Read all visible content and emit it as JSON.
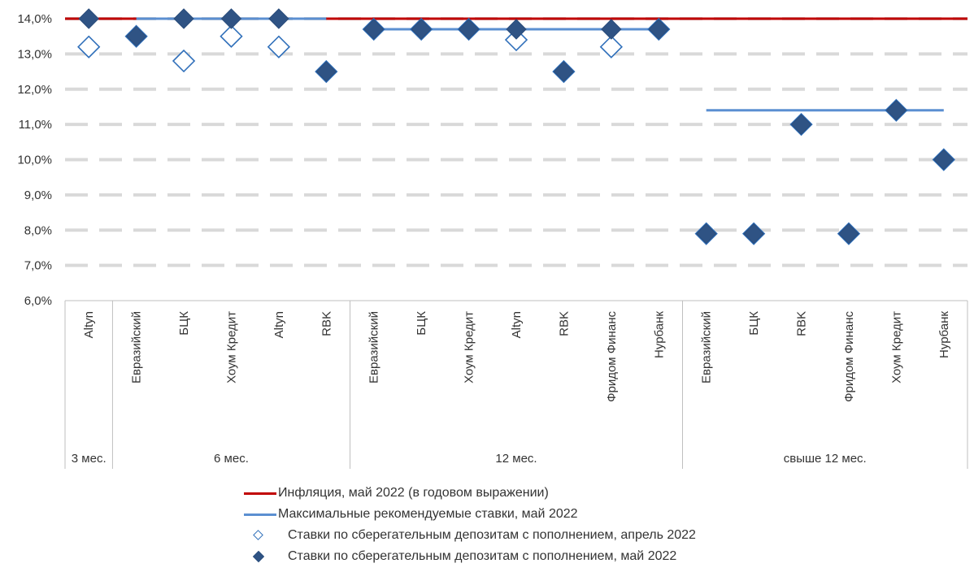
{
  "chart_data": {
    "type": "scatter",
    "ylim": [
      6.0,
      14.0
    ],
    "ystep": 1.0,
    "yticks": [
      "6,0%",
      "7,0%",
      "8,0%",
      "9,0%",
      "10,0%",
      "11,0%",
      "12,0%",
      "13,0%",
      "14,0%"
    ],
    "grid": true,
    "groups": [
      {
        "label": "3 мес.",
        "categories": [
          "Altyn"
        ]
      },
      {
        "label": "6 мес.",
        "categories": [
          "Евразийский",
          "БЦК",
          "Хоум Кредит",
          "Altyn",
          "RBK"
        ]
      },
      {
        "label": "12 мес.",
        "categories": [
          "Евразийский",
          "БЦК",
          "Хоум Кредит",
          "Altyn",
          "RBK",
          "Фридом Финанс",
          "Нурбанк"
        ]
      },
      {
        "label": "свыше 12 мес.",
        "categories": [
          "Евразийский",
          "БЦК",
          "RBK",
          "Фридом Финанс",
          "Хоум Кредит",
          "Нурбанк"
        ]
      }
    ],
    "categories": [
      "Altyn",
      "Евразийский",
      "БЦК",
      "Хоум Кредит",
      "Altyn",
      "RBK",
      "Евразийский",
      "БЦК",
      "Хоум Кредит",
      "Altyn",
      "RBK",
      "Фридом Финанс",
      "Нурбанк",
      "Евразийский",
      "БЦК",
      "RBK",
      "Фридом Финанс",
      "Хоум Кредит",
      "Нурбанк"
    ],
    "series": [
      {
        "name": "Инфляция, май 2022 (в годовом выражении)",
        "kind": "line",
        "color": "#c00000",
        "values": [
          14.0,
          14.0,
          14.0,
          14.0,
          14.0,
          14.0,
          14.0,
          14.0,
          14.0,
          14.0,
          14.0,
          14.0,
          14.0,
          14.0,
          14.0,
          14.0,
          14.0,
          14.0,
          14.0
        ]
      },
      {
        "name": "Максимальные рекомендуемые ставки, май 2022",
        "kind": "segments",
        "color": "#5b8fd1",
        "values": [
          null,
          14.0,
          14.0,
          14.0,
          14.0,
          14.0,
          13.7,
          13.7,
          13.7,
          13.7,
          13.7,
          13.7,
          13.7,
          11.4,
          11.4,
          11.4,
          11.4,
          11.4,
          11.4
        ]
      },
      {
        "name": "Ставки по сберегательным депозитам с пополнением, апрель 2022",
        "kind": "open-diamond",
        "color": "#2f6fba",
        "values": [
          13.2,
          13.5,
          12.8,
          13.5,
          13.2,
          12.5,
          13.7,
          13.7,
          13.7,
          13.4,
          12.5,
          13.2,
          13.7,
          7.9,
          7.9,
          11.0,
          7.9,
          11.4,
          10.0
        ]
      },
      {
        "name": "Ставки по сберегательным депозитам с пополнением, май 2022",
        "kind": "filled-diamond",
        "color": "#2f5384",
        "values": [
          14.0,
          13.5,
          14.0,
          14.0,
          14.0,
          12.5,
          13.7,
          13.7,
          13.7,
          13.7,
          12.5,
          13.7,
          13.7,
          7.9,
          7.9,
          11.0,
          7.9,
          11.4,
          10.0
        ]
      }
    ]
  }
}
